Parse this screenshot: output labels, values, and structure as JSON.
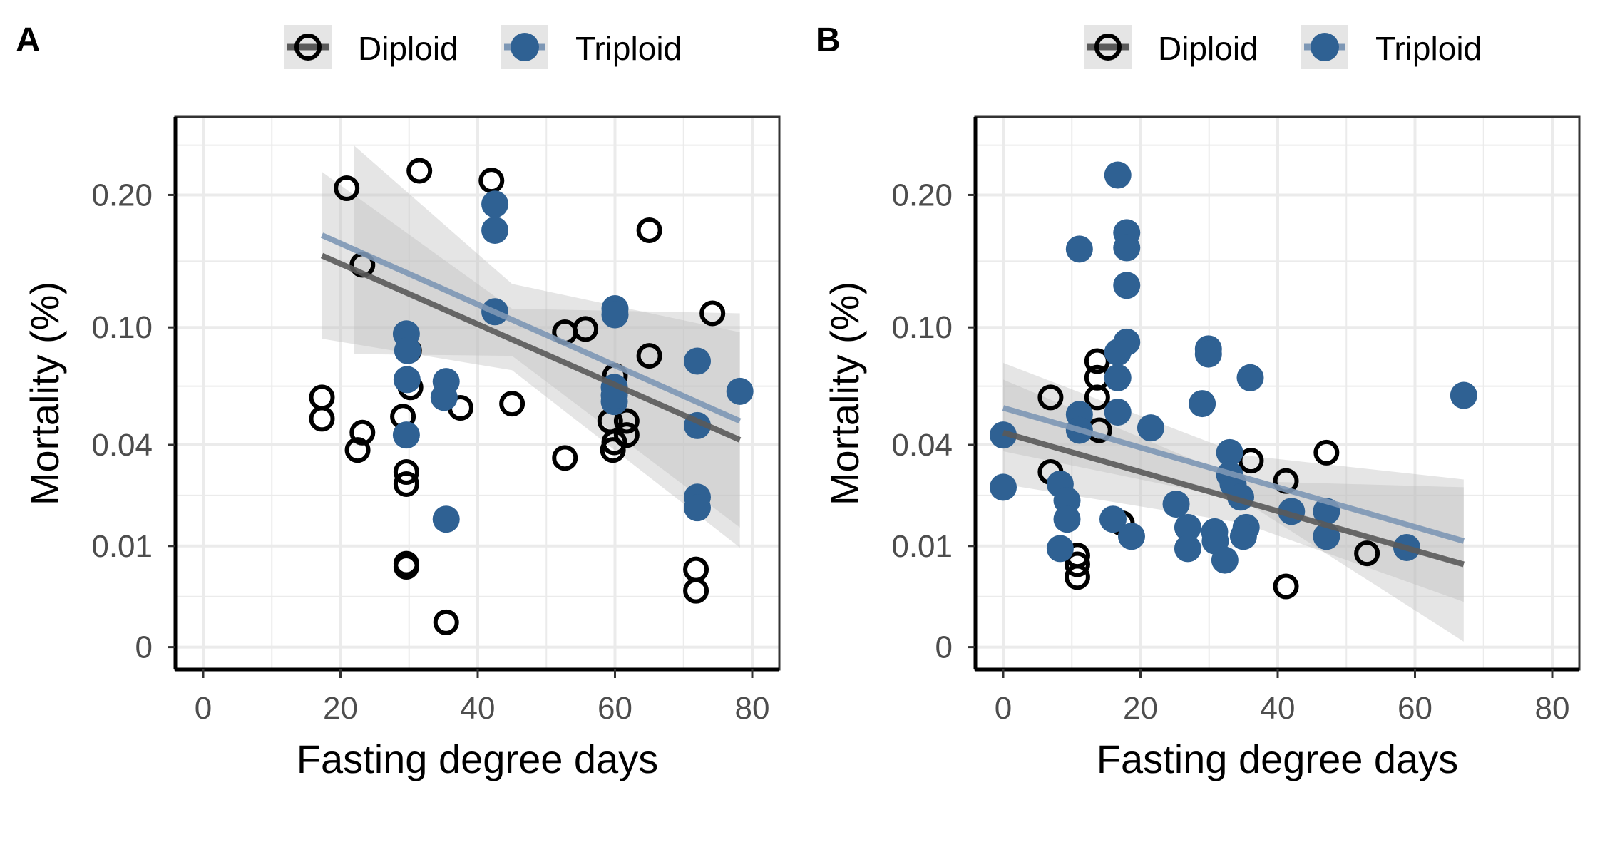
{
  "colors": {
    "diploid": "#000000",
    "triploid": "#2f6193",
    "diploid_line": "#5a5a5a",
    "triploid_line": "#7d97b5",
    "ribbon": "#bdbdbd",
    "grid": "#ebebeb"
  },
  "chart_data": [
    {
      "panel_label": "A",
      "type": "scatter",
      "xlabel": "Fasting degree days",
      "ylabel": "Mortality (%)",
      "x_ticks": [
        "0",
        "20",
        "40",
        "60",
        "80"
      ],
      "y_ticks": [
        "0",
        "0.01",
        "0.04",
        "0.10",
        "0.20"
      ],
      "y_scale": "sqrt",
      "xlim": [
        -4,
        84
      ],
      "grid": true,
      "legend": {
        "placement": "top",
        "entries": [
          "Diploid",
          "Triploid"
        ]
      },
      "series": [
        {
          "name": "Diploid",
          "marker": "open-circle",
          "points": [
            [
              20.9,
              0.206
            ],
            [
              31.5,
              0.222
            ],
            [
              42.0,
              0.213
            ],
            [
              23.2,
              0.143
            ],
            [
              65.0,
              0.17
            ],
            [
              74.2,
              0.109
            ],
            [
              52.7,
              0.097
            ],
            [
              55.7,
              0.099
            ],
            [
              65.0,
              0.083
            ],
            [
              60.0,
              0.072
            ],
            [
              30.0,
              0.086
            ],
            [
              30.2,
              0.066
            ],
            [
              17.3,
              0.061
            ],
            [
              17.3,
              0.051
            ],
            [
              22.5,
              0.038
            ],
            [
              23.2,
              0.045
            ],
            [
              29.1,
              0.052
            ],
            [
              37.5,
              0.056
            ],
            [
              45.0,
              0.058
            ],
            [
              52.7,
              0.035
            ],
            [
              59.3,
              0.05
            ],
            [
              59.7,
              0.038
            ],
            [
              59.9,
              0.041
            ],
            [
              61.7,
              0.044
            ],
            [
              61.7,
              0.05
            ],
            [
              29.6,
              0.03
            ],
            [
              29.6,
              0.026
            ],
            [
              29.6,
              0.0068
            ],
            [
              29.6,
              0.0063
            ],
            [
              35.4,
              0.0006
            ],
            [
              71.8,
              0.0059
            ],
            [
              71.8,
              0.0031
            ]
          ],
          "fit": [
            [
              17.3,
              0.15
            ],
            [
              78.2,
              0.042
            ]
          ],
          "ribbon": [
            [
              17.3,
              0.093,
              0.221
            ],
            [
              45,
              0.075,
              0.112
            ],
            [
              78.2,
              0.0097,
              0.109
            ]
          ]
        },
        {
          "name": "Triploid",
          "marker": "filled-circle",
          "points": [
            [
              42.5,
              0.192
            ],
            [
              42.5,
              0.17
            ],
            [
              42.5,
              0.11
            ],
            [
              29.6,
              0.096
            ],
            [
              29.8,
              0.086
            ],
            [
              29.7,
              0.07
            ],
            [
              35.4,
              0.069
            ],
            [
              35.1,
              0.061
            ],
            [
              29.6,
              0.044
            ],
            [
              35.4,
              0.016
            ],
            [
              60.0,
              0.112
            ],
            [
              60.0,
              0.108
            ],
            [
              59.9,
              0.066
            ],
            [
              59.9,
              0.059
            ],
            [
              59.9,
              0.062
            ],
            [
              72.0,
              0.08
            ],
            [
              78.2,
              0.064
            ],
            [
              72.0,
              0.048
            ],
            [
              72.0,
              0.022
            ],
            [
              72.0,
              0.019
            ]
          ],
          "fit": [
            [
              17.3,
              0.166
            ],
            [
              78.2,
              0.05
            ]
          ],
          "ribbon": [
            [
              22,
              0.084,
              0.246
            ],
            [
              45,
              0.083,
              0.129
            ],
            [
              78.2,
              0.014,
              0.097
            ]
          ]
        }
      ]
    },
    {
      "panel_label": "B",
      "type": "scatter",
      "xlabel": "Fasting degree days",
      "ylabel": "Mortality (%)",
      "x_ticks": [
        "0",
        "20",
        "40",
        "60",
        "80"
      ],
      "y_ticks": [
        "0",
        "0.01",
        "0.04",
        "0.10",
        "0.20"
      ],
      "y_scale": "sqrt",
      "xlim": [
        -4,
        84
      ],
      "grid": true,
      "legend": {
        "placement": "top",
        "entries": [
          "Diploid",
          "Triploid"
        ]
      },
      "series": [
        {
          "name": "Diploid",
          "marker": "open-circle",
          "points": [
            [
              6.9,
              0.061
            ],
            [
              6.9,
              0.03
            ],
            [
              13.7,
              0.08
            ],
            [
              13.7,
              0.071
            ],
            [
              13.7,
              0.061
            ],
            [
              14.0,
              0.046
            ],
            [
              10.8,
              0.0082
            ],
            [
              10.8,
              0.0067
            ],
            [
              10.8,
              0.0048
            ],
            [
              17.3,
              0.015
            ],
            [
              36.1,
              0.034
            ],
            [
              41.2,
              0.027
            ],
            [
              41.2,
              0.0036
            ],
            [
              47.1,
              0.037
            ],
            [
              53.0,
              0.0086
            ]
          ],
          "fit": [
            [
              0,
              0.045
            ],
            [
              67.1,
              0.0067
            ]
          ],
          "ribbon": [
            [
              0,
              0.026,
              0.07
            ],
            [
              35,
              0.015,
              0.027
            ],
            [
              67.1,
              0.002,
              0.025
            ]
          ]
        },
        {
          "name": "Triploid",
          "marker": "filled-circle",
          "points": [
            [
              16.7,
              0.218
            ],
            [
              18.0,
              0.168
            ],
            [
              18.0,
              0.156
            ],
            [
              11.1,
              0.155
            ],
            [
              18.0,
              0.128
            ],
            [
              18.0,
              0.091
            ],
            [
              16.7,
              0.085
            ],
            [
              16.7,
              0.071
            ],
            [
              16.7,
              0.054
            ],
            [
              11.1,
              0.053
            ],
            [
              11.1,
              0.046
            ],
            [
              21.5,
              0.047
            ],
            [
              29.9,
              0.087
            ],
            [
              29.9,
              0.084
            ],
            [
              29.0,
              0.058
            ],
            [
              36.0,
              0.071
            ],
            [
              67.1,
              0.062
            ],
            [
              0,
              0.044
            ],
            [
              0,
              0.025
            ],
            [
              8.3,
              0.026
            ],
            [
              9.3,
              0.021
            ],
            [
              9.3,
              0.016
            ],
            [
              8.3,
              0.0095
            ],
            [
              16.0,
              0.016
            ],
            [
              18.7,
              0.012
            ],
            [
              25.2,
              0.02
            ],
            [
              26.9,
              0.014
            ],
            [
              26.9,
              0.0095
            ],
            [
              30.8,
              0.013
            ],
            [
              30.9,
              0.011
            ],
            [
              32.3,
              0.0074
            ],
            [
              33.0,
              0.037
            ],
            [
              33.0,
              0.029
            ],
            [
              33.5,
              0.026
            ],
            [
              34.6,
              0.022
            ],
            [
              35.4,
              0.014
            ],
            [
              35.0,
              0.012
            ],
            [
              42.0,
              0.018
            ],
            [
              47.1,
              0.018
            ],
            [
              47.1,
              0.012
            ],
            [
              58.8,
              0.0097
            ]
          ],
          "fit": [
            [
              0,
              0.056
            ],
            [
              67.1,
              0.011
            ]
          ],
          "ribbon": [
            [
              0,
              0.0375,
              0.079
            ],
            [
              35,
              0.021,
              0.036
            ],
            [
              67.1,
              3e-05,
              0.0275
            ]
          ]
        }
      ]
    }
  ]
}
